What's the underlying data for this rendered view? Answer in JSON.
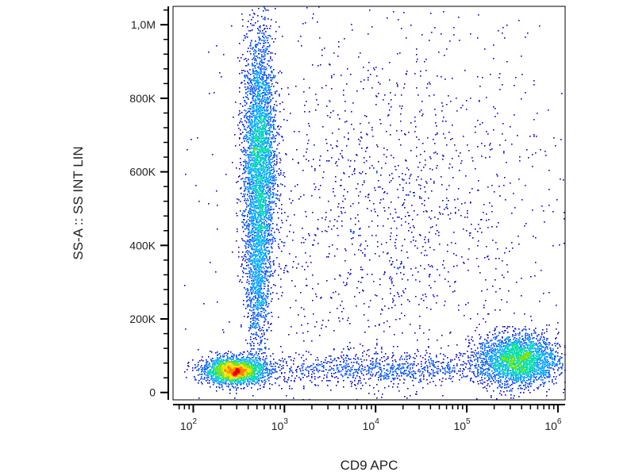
{
  "chart_data": {
    "type": "scatter",
    "title": "",
    "xlabel": "CD9 APC",
    "ylabel": "SS-A :: SS INT LIN",
    "x_scale": "log",
    "xlim": [
      60,
      1200000
    ],
    "ylim": [
      -20000,
      1050000
    ],
    "grid": false,
    "legend": "none",
    "x_ticks": [
      {
        "value": 100,
        "base": "10",
        "exp": "2"
      },
      {
        "value": 1000,
        "base": "10",
        "exp": "3"
      },
      {
        "value": 10000,
        "base": "10",
        "exp": "4"
      },
      {
        "value": 100000,
        "base": "10",
        "exp": "5"
      },
      {
        "value": 1000000,
        "base": "10",
        "exp": "6"
      }
    ],
    "y_ticks": [
      {
        "value": 0,
        "label": "0"
      },
      {
        "value": 200000,
        "label": "200K"
      },
      {
        "value": 400000,
        "label": "400K"
      },
      {
        "value": 600000,
        "label": "600K"
      },
      {
        "value": 800000,
        "label": "800K"
      },
      {
        "value": 1000000,
        "label": "1,0M"
      }
    ],
    "populations": [
      {
        "x_log_center": 2.45,
        "x_log_sd": 0.17,
        "y_center": 60000,
        "y_sd": 18000,
        "count": 2200
      },
      {
        "x_log_center": 2.72,
        "x_log_sd": 0.09,
        "y_center": 640000,
        "y_sd": 170000,
        "count": 3600
      },
      {
        "x_log_center": 2.7,
        "x_log_sd": 0.07,
        "y_center": 300000,
        "y_sd": 110000,
        "count": 900
      },
      {
        "x_log_center": 5.55,
        "x_log_sd": 0.22,
        "y_center": 90000,
        "y_sd": 35000,
        "count": 2600
      },
      {
        "x_log_center": 4.0,
        "x_log_sd": 0.7,
        "y_center": 65000,
        "y_sd": 22000,
        "count": 900
      },
      {
        "x_log_center": 4.2,
        "x_log_sd": 0.9,
        "y_center": 480000,
        "y_sd": 280000,
        "count": 1600
      }
    ],
    "colors": [
      "#0000cc",
      "#0055ff",
      "#00aaff",
      "#00e0a0",
      "#7fe000",
      "#ffe000",
      "#ff8000",
      "#ee0000"
    ]
  }
}
